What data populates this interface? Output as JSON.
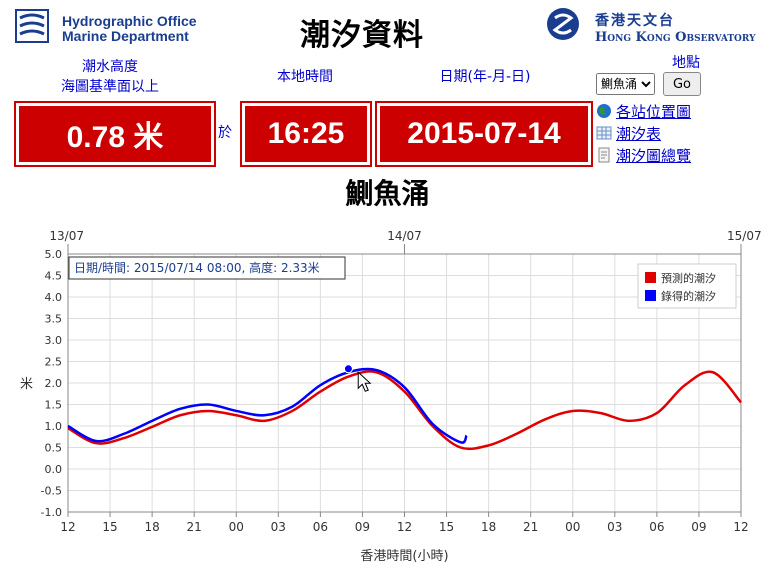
{
  "header": {
    "left_org_line1": "Hydrographic Office",
    "left_org_line2": "Marine Department",
    "title": "潮汐資料",
    "hko_zh": "香港天文台",
    "hko_en": "Hong Kong Observatory"
  },
  "labels": {
    "tide_height": "潮水高度",
    "datum": "海圖基準面以上",
    "local_time": "本地時間",
    "date_fmt": "日期(年-月-日)",
    "location": "地點",
    "at": "於"
  },
  "values": {
    "height": "0.78 米",
    "time": "16:25",
    "date": "2015-07-14"
  },
  "controls": {
    "selected_station": "鰂魚涌",
    "go_label": "Go"
  },
  "links": {
    "station_map": "各站位置圖",
    "tide_table": "潮汐表",
    "tide_overview": "潮汐圖總覽"
  },
  "station_name": "鰂魚涌",
  "chart_data": {
    "type": "line",
    "top_labels": [
      "13/07",
      "14/07",
      "15/07"
    ],
    "x_ticks": [
      "12",
      "15",
      "18",
      "21",
      "00",
      "03",
      "06",
      "09",
      "12",
      "15",
      "18",
      "21",
      "00",
      "03",
      "06",
      "09",
      "12"
    ],
    "xlabel": "香港時間(小時)",
    "ylabel": "米",
    "ylim": [
      -1.0,
      5.0
    ],
    "y_ticks": [
      "5.0",
      "4.5",
      "4.0",
      "3.5",
      "3.0",
      "2.5",
      "2.0",
      "1.5",
      "1.0",
      "0.5",
      "0.0",
      "-0.5",
      "-1.0"
    ],
    "grid": true,
    "tooltip": "日期/時間: 2015/07/14 08:00, 高度: 2.33米",
    "legend_position": "top-right",
    "series": [
      {
        "name": "預測的潮汐",
        "color": "#e00000",
        "x": [
          0,
          2,
          4,
          6,
          8,
          10,
          12,
          14,
          16,
          18,
          20,
          22,
          24,
          26,
          28,
          30,
          32,
          34,
          36,
          38,
          40,
          42,
          44,
          46,
          48
        ],
        "values": [
          0.95,
          0.6,
          0.72,
          0.98,
          1.25,
          1.35,
          1.25,
          1.12,
          1.35,
          1.8,
          2.15,
          2.25,
          1.8,
          1.0,
          0.5,
          0.55,
          0.82,
          1.15,
          1.35,
          1.3,
          1.12,
          1.3,
          1.95,
          2.25,
          1.55
        ]
      },
      {
        "name": "錄得的潮汐",
        "color": "#0000ff",
        "x": [
          0,
          2,
          4,
          6,
          8,
          10,
          12,
          14,
          16,
          18,
          20,
          22,
          24,
          26,
          28,
          30,
          28.42
        ],
        "values": [
          1.0,
          0.65,
          0.82,
          1.12,
          1.4,
          1.5,
          1.35,
          1.25,
          1.45,
          1.95,
          2.25,
          2.3,
          1.9,
          1.05,
          0.62,
          0.62,
          0.78
        ]
      }
    ]
  },
  "colors": {
    "red_box": "#cc0000",
    "label_blue": "#0000cc",
    "predicted": "#e00000",
    "recorded": "#0000ff"
  }
}
